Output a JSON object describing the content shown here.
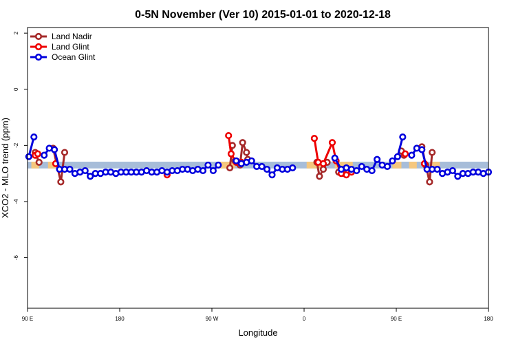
{
  "chart_data": {
    "type": "line",
    "title": "0-5N November (Ver 10)   2015-01-01 to 2020-12-18",
    "xlabel": "Longitude",
    "ylabel": "XCO2 - MLO trend (ppm)",
    "xlim": [
      90,
      450
    ],
    "ylim": [
      -7.8,
      2.2
    ],
    "x_ticks": [
      {
        "value": 90,
        "label": "90 E"
      },
      {
        "value": 162,
        "label": "180"
      },
      {
        "value": 234,
        "label": "90 W"
      },
      {
        "value": 306,
        "label": "0"
      },
      {
        "value": 378,
        "label": "90 E"
      },
      {
        "value": 450,
        "label": "180"
      }
    ],
    "y_ticks": [
      {
        "value": 2,
        "label": "2"
      },
      {
        "value": 0,
        "label": "0"
      },
      {
        "value": -2,
        "label": "-2"
      },
      {
        "value": -4,
        "label": "-4"
      },
      {
        "value": -6,
        "label": "-6"
      }
    ],
    "band": {
      "y_min": -2.82,
      "y_max": -2.58,
      "color": "#a7bdd9"
    },
    "band_highlights": {
      "color": "#f5c77e",
      "segments": [
        [
          93,
          99
        ],
        [
          106,
          112
        ],
        [
          238,
          252
        ],
        [
          308,
          322
        ],
        [
          330,
          344
        ],
        [
          375,
          382
        ],
        [
          388,
          394
        ],
        [
          406,
          412
        ]
      ]
    },
    "grid": false,
    "legend_position": "top-left",
    "series": [
      {
        "name": "Land Nadir",
        "color": "#a52a2a",
        "x": [
          96,
          116,
          119,
          256,
          258,
          261,
          262,
          301,
          303,
          311,
          324,
          329,
          330,
          345,
          347,
          351,
          371,
          378,
          396,
          400,
          401,
          408,
          409
        ],
        "segments": [
          [
            [
              96,
              -2.25
            ],
            [
              99,
              -2.6
            ]
          ],
          [
            [
              110,
              -2.1
            ],
            [
              116,
              -3.3
            ],
            [
              119,
              -2.25
            ]
          ],
          [
            [
              248,
              -2.8
            ],
            [
              250,
              -2.0
            ]
          ],
          [
            [
              252,
              -2.55
            ],
            [
              256,
              -2.7
            ],
            [
              258,
              -1.9
            ],
            [
              261,
              -2.25
            ],
            [
              262,
              -2.5
            ]
          ],
          [
            [
              316,
              -2.6
            ],
            [
              318,
              -3.1
            ],
            [
              321,
              -2.85
            ],
            [
              324,
              -2.6
            ]
          ],
          [
            [
              333,
              -2.95
            ],
            [
              337,
              -3.0
            ],
            [
              340,
              -2.9
            ]
          ],
          [
            [
              382,
              -2.2
            ],
            [
              384,
              -2.35
            ]
          ],
          [
            [
              398,
              -2.05
            ],
            [
              401,
              -2.7
            ],
            [
              404,
              -3.3
            ],
            [
              406,
              -2.25
            ]
          ]
        ]
      },
      {
        "name": "Land Glint",
        "color": "#ee0000",
        "segments": [
          [
            [
              96,
              -2.35
            ],
            [
              98,
              -2.3
            ]
          ],
          [
            [
              112,
              -2.65
            ]
          ],
          [
            [
              199,
              -3.05
            ]
          ],
          [
            [
              247,
              -1.65
            ],
            [
              249,
              -2.3
            ],
            [
              253,
              -2.6
            ],
            [
              257,
              -2.6
            ]
          ],
          [
            [
              314,
              -1.75
            ],
            [
              317,
              -2.6
            ],
            [
              321,
              -2.65
            ],
            [
              328,
              -1.9
            ],
            [
              331,
              -2.55
            ],
            [
              335,
              -3.0
            ],
            [
              339,
              -3.05
            ],
            [
              343,
              -2.95
            ]
          ],
          [
            [
              385,
              -2.3
            ]
          ],
          [
            [
              400,
              -2.65
            ]
          ]
        ]
      },
      {
        "name": "Ocean Glint",
        "color": "#0000dd",
        "segments": [
          [
            [
              91,
              -2.4
            ],
            [
              95,
              -1.7
            ]
          ],
          [
            [
              103,
              -2.35
            ],
            [
              107,
              -2.1
            ],
            [
              111,
              -2.15
            ],
            [
              115,
              -2.85
            ],
            [
              119,
              -2.85
            ],
            [
              123,
              -2.85
            ],
            [
              127,
              -3.0
            ],
            [
              131,
              -2.95
            ],
            [
              135,
              -2.9
            ],
            [
              139,
              -3.1
            ],
            [
              143,
              -3.0
            ],
            [
              147,
              -3.0
            ],
            [
              151,
              -2.95
            ],
            [
              155,
              -2.95
            ],
            [
              159,
              -3.0
            ],
            [
              163,
              -2.95
            ],
            [
              167,
              -2.95
            ],
            [
              171,
              -2.95
            ],
            [
              175,
              -2.95
            ],
            [
              179,
              -2.95
            ],
            [
              183,
              -2.9
            ],
            [
              187,
              -2.95
            ],
            [
              191,
              -2.95
            ],
            [
              195,
              -2.9
            ],
            [
              199,
              -2.95
            ],
            [
              203,
              -2.9
            ],
            [
              207,
              -2.9
            ],
            [
              211,
              -2.85
            ],
            [
              215,
              -2.85
            ],
            [
              219,
              -2.9
            ],
            [
              223,
              -2.85
            ],
            [
              227,
              -2.9
            ],
            [
              231,
              -2.7
            ],
            [
              235,
              -2.9
            ],
            [
              239,
              -2.7
            ]
          ],
          [
            [
              253,
              -2.55
            ],
            [
              257,
              -2.65
            ],
            [
              261,
              -2.6
            ],
            [
              265,
              -2.55
            ],
            [
              269,
              -2.75
            ],
            [
              273,
              -2.75
            ],
            [
              277,
              -2.85
            ],
            [
              281,
              -3.05
            ],
            [
              285,
              -2.8
            ],
            [
              289,
              -2.85
            ],
            [
              293,
              -2.85
            ],
            [
              297,
              -2.8
            ]
          ],
          [
            [
              330,
              -2.45
            ],
            [
              335,
              -2.85
            ],
            [
              339,
              -2.8
            ],
            [
              343,
              -2.85
            ],
            [
              347,
              -2.9
            ],
            [
              351,
              -2.75
            ],
            [
              355,
              -2.85
            ],
            [
              359,
              -2.9
            ],
            [
              363,
              -2.5
            ],
            [
              367,
              -2.7
            ],
            [
              371,
              -2.75
            ],
            [
              375,
              -2.55
            ],
            [
              379,
              -2.4
            ],
            [
              383,
              -1.7
            ]
          ],
          [
            [
              390,
              -2.35
            ],
            [
              394,
              -2.1
            ],
            [
              398,
              -2.15
            ],
            [
              402,
              -2.85
            ],
            [
              406,
              -2.85
            ],
            [
              410,
              -2.85
            ],
            [
              414,
              -3.0
            ],
            [
              418,
              -2.95
            ],
            [
              422,
              -2.9
            ],
            [
              426,
              -3.1
            ],
            [
              430,
              -3.0
            ],
            [
              434,
              -3.0
            ],
            [
              438,
              -2.95
            ],
            [
              442,
              -2.95
            ],
            [
              446,
              -3.0
            ],
            [
              450,
              -2.95
            ]
          ]
        ]
      }
    ]
  }
}
